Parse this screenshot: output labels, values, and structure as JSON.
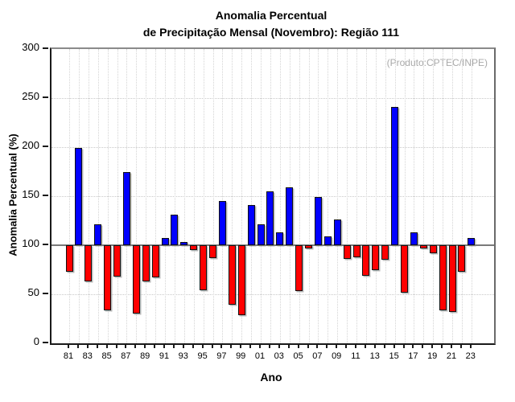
{
  "title": {
    "line1": "Anomalia Percentual",
    "line2": "de Precipitação Mensal (Novembro): Região 111"
  },
  "annotation": "(Produto:CPTEC/INPE)",
  "chart_data": {
    "type": "bar",
    "title": "Anomalia Percentual de Precipitação Mensal (Novembro): Região 111",
    "xlabel": "Ano",
    "ylabel": "Anomalia Percentual (%)",
    "ylim": [
      0,
      300
    ],
    "yticks": [
      0,
      50,
      100,
      150,
      200,
      250,
      300
    ],
    "baseline": 100,
    "grid": "dotted",
    "legend": "none",
    "categories": [
      "81",
      "82",
      "83",
      "84",
      "85",
      "86",
      "87",
      "88",
      "89",
      "90",
      "91",
      "92",
      "93",
      "94",
      "95",
      "96",
      "97",
      "98",
      "99",
      "00",
      "01",
      "02",
      "03",
      "04",
      "05",
      "06",
      "07",
      "08",
      "09",
      "10",
      "11",
      "12",
      "13",
      "14",
      "15",
      "16",
      "17",
      "18",
      "19",
      "20",
      "21",
      "22",
      "23"
    ],
    "labeled_ticks": [
      "81",
      "83",
      "85",
      "87",
      "89",
      "91",
      "93",
      "95",
      "97",
      "99",
      "01",
      "03",
      "05",
      "07",
      "09",
      "11",
      "13",
      "15",
      "17",
      "19",
      "21",
      "23"
    ],
    "values": [
      73,
      199,
      63,
      121,
      34,
      68,
      175,
      30,
      63,
      67,
      107,
      131,
      103,
      95,
      54,
      87,
      145,
      39,
      29,
      141,
      121,
      155,
      113,
      159,
      53,
      97,
      149,
      109,
      126,
      86,
      88,
      69,
      75,
      85,
      241,
      52,
      113,
      97,
      92,
      34,
      32,
      73,
      107
    ],
    "color_above_baseline": "#0000ff",
    "color_below_baseline": "#ff0000"
  }
}
